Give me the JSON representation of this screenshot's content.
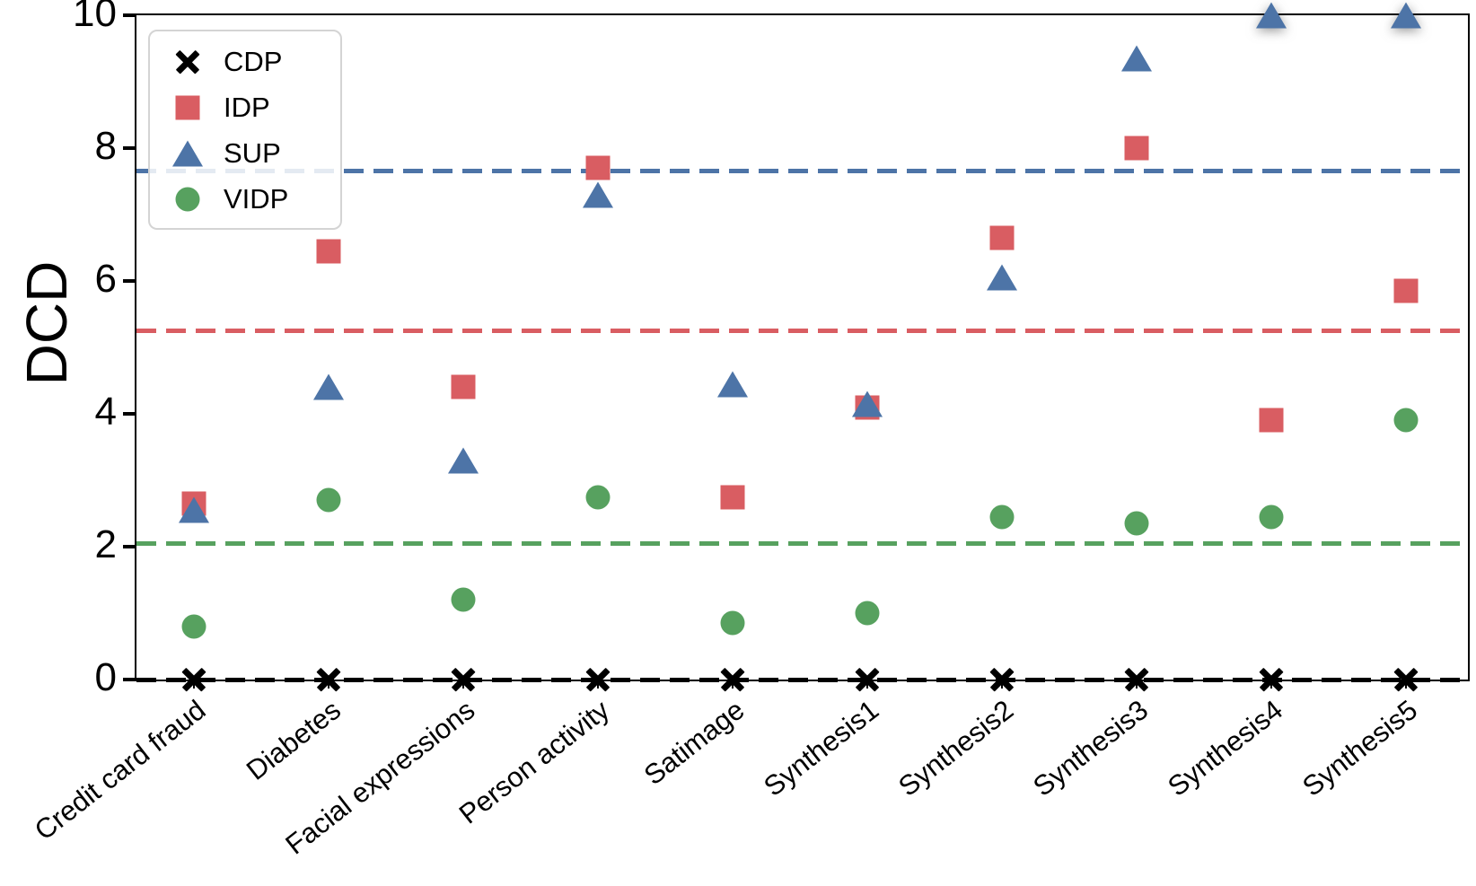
{
  "chart_data": {
    "type": "scatter",
    "title": "",
    "xlabel": "",
    "ylabel": "DCD",
    "ylim": [
      0,
      10
    ],
    "yticks": [
      0,
      2,
      4,
      6,
      8,
      10
    ],
    "grid": false,
    "legend_position": "upper-left",
    "x_tick_rotation_deg": -38,
    "categories": [
      "Credit card fraud",
      "Diabetes",
      "Facial expressions",
      "Person activity",
      "Satimage",
      "Synthesis1",
      "Synthesis2",
      "Synthesis3",
      "Synthesis4",
      "Synthesis5"
    ],
    "series": [
      {
        "name": "CDP",
        "marker": "x",
        "color": "#000000",
        "values": [
          0,
          0,
          0,
          0,
          0,
          0,
          0,
          0,
          0,
          0
        ],
        "dashed_mean_line": 0
      },
      {
        "name": "IDP",
        "marker": "square",
        "color": "#d95d62",
        "values": [
          2.65,
          6.45,
          4.4,
          7.7,
          2.75,
          4.1,
          6.65,
          8.0,
          3.9,
          5.85
        ],
        "dashed_mean_line": 5.25
      },
      {
        "name": "SUP",
        "marker": "triangle-up",
        "color": "#4d74a7",
        "values": [
          2.55,
          4.4,
          3.3,
          7.3,
          4.45,
          4.15,
          6.05,
          9.35,
          10.0,
          10.0
        ],
        "dashed_mean_line": 7.65
      },
      {
        "name": "VIDP",
        "marker": "circle",
        "color": "#57a15f",
        "values": [
          0.8,
          2.7,
          1.2,
          2.75,
          0.85,
          1.0,
          2.45,
          2.35,
          2.45,
          3.9
        ],
        "dashed_mean_line": 2.05
      }
    ]
  }
}
